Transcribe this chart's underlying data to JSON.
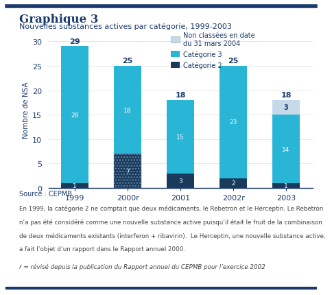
{
  "categories": [
    "1999",
    "2000r",
    "2001",
    "2002r",
    "2003"
  ],
  "cat2": [
    1,
    7,
    3,
    2,
    1
  ],
  "cat3": [
    28,
    18,
    15,
    23,
    14
  ],
  "non_classees": [
    0,
    0,
    0,
    0,
    3
  ],
  "totals": [
    29,
    25,
    18,
    25,
    18
  ],
  "cat2_labels": [
    "1",
    "7",
    "3",
    "2",
    "1"
  ],
  "cat3_labels": [
    "28",
    "18",
    "15",
    "23",
    "14"
  ],
  "color_cat2": "#1a3a5c",
  "color_cat3": "#29b5d5",
  "color_non": "#c5d9e8",
  "color_bg": "#ffffff",
  "color_dark_blue": "#1a3a6c",
  "color_text": "#1a3a6c",
  "color_note": "#444444",
  "title_main": "Graphique 3",
  "title_sub": "Nouvelles substances actives par catégorie, 1999-2003",
  "ylabel": "Nombre de NSA",
  "source": "Source : CEPMB",
  "legend_non": "Non classées en date\ndu 31 mars 2004",
  "legend_cat3": "Catégorie 3",
  "legend_cat2": "Catégorie 2",
  "ylim": [
    0,
    32
  ],
  "yticks": [
    0,
    5,
    10,
    15,
    20,
    25,
    30
  ],
  "note_lines": [
    "En 1999, la catégorie 2 ne comptait que deux médicaments, le Rebetron et le Herceptin. Le Rebetron",
    "n’a pas été considéré comme une nouvelle substance active puisqu’il était le fruit de la combinaison",
    "de deux médicaments existants (interferon + ribavirin).  Le Herceptin, une nouvelle substance active,",
    "a fait l’objet d’un rapport dans le Rapport annuel 2000."
  ],
  "note_italic": "r = révisé depuis la publication du Rapport annuel du CEPMB pour l’exercice 2002"
}
